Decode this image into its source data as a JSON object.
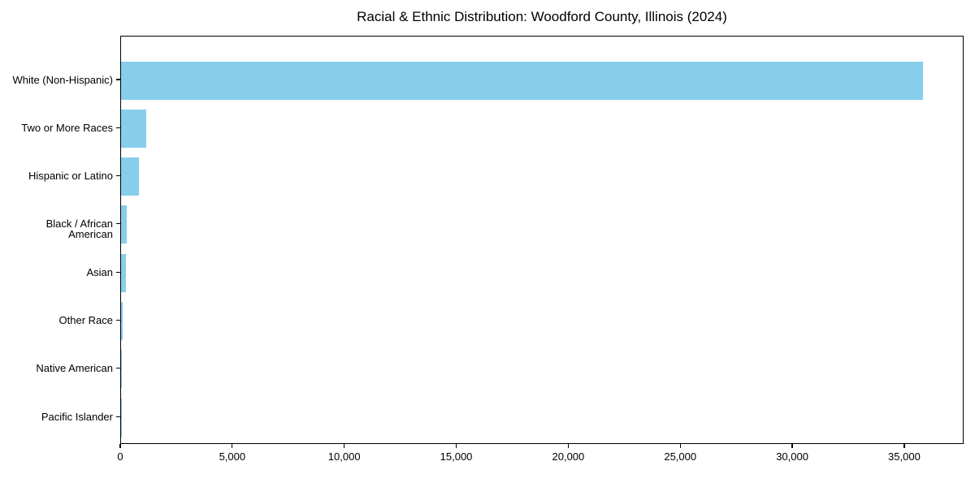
{
  "chart_data": {
    "type": "bar",
    "orientation": "horizontal",
    "title": "Racial & Ethnic Distribution: Woodford County, Illinois (2024)",
    "categories": [
      "White (Non-Hispanic)",
      "Two or More Races",
      "Hispanic or Latino",
      "Black / African American",
      "Asian",
      "Other Race",
      "Native American",
      "Pacific Islander"
    ],
    "values": [
      35800,
      1120,
      800,
      250,
      200,
      90,
      25,
      10
    ],
    "xlabel": "",
    "ylabel": "",
    "xlim": [
      0,
      37650
    ],
    "x_ticks": [
      0,
      5000,
      10000,
      15000,
      20000,
      25000,
      30000,
      35000
    ],
    "x_tick_labels": [
      "0",
      "5,000",
      "10,000",
      "15,000",
      "20,000",
      "25,000",
      "30,000",
      "35,000"
    ],
    "bar_color": "#87CEEB",
    "axis_color": "#000000",
    "text_color": "#000000",
    "grid": false,
    "legend": null
  }
}
